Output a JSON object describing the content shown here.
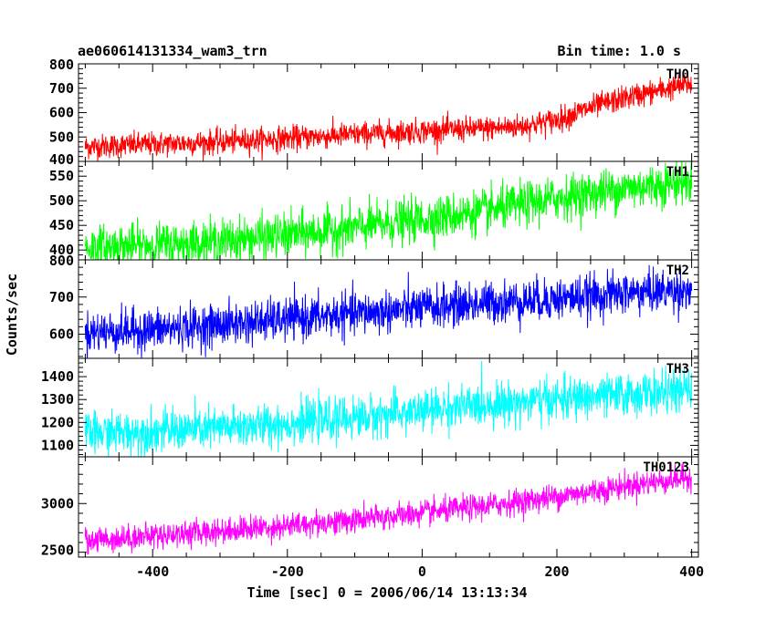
{
  "chart_data": {
    "type": "line",
    "title": "ae060614131334_wam3_trn",
    "subtitle": "Bin time: 1.0 s",
    "xlabel": "Time [sec] 0 = 2006/06/14 13:13:34",
    "ylabel": "Counts/sec",
    "xlim": [
      -510,
      410
    ],
    "x_ticks": [
      -400,
      -200,
      0,
      200,
      400
    ],
    "grid": false,
    "panels": [
      {
        "name": "TH0",
        "color": "#ff0000",
        "ylim": [
          400,
          800
        ],
        "y_ticks": [
          400,
          500,
          600,
          700,
          800
        ],
        "trend": {
          "x": [
            -500,
            -400,
            -300,
            -200,
            -100,
            0,
            100,
            150,
            200,
            250,
            300,
            350,
            400
          ],
          "y": [
            460,
            470,
            480,
            495,
            510,
            525,
            535,
            545,
            570,
            620,
            660,
            690,
            720
          ]
        },
        "noise_sd": 25
      },
      {
        "name": "TH1",
        "color": "#00ff00",
        "ylim": [
          380,
          580
        ],
        "y_ticks": [
          400,
          450,
          500,
          550
        ],
        "trend": {
          "x": [
            -500,
            -400,
            -300,
            -200,
            -100,
            0,
            100,
            200,
            300,
            400
          ],
          "y": [
            405,
            410,
            418,
            430,
            445,
            462,
            480,
            505,
            525,
            540
          ]
        },
        "noise_sd": 22
      },
      {
        "name": "TH2",
        "color": "#0000ff",
        "ylim": [
          535,
          800
        ],
        "y_ticks": [
          600,
          700,
          800
        ],
        "trend": {
          "x": [
            -500,
            -400,
            -300,
            -200,
            -100,
            0,
            100,
            200,
            300,
            400
          ],
          "y": [
            605,
            612,
            625,
            640,
            655,
            670,
            685,
            695,
            710,
            720
          ]
        },
        "noise_sd": 28
      },
      {
        "name": "TH3",
        "color": "#00ffff",
        "ylim": [
          1050,
          1480
        ],
        "y_ticks": [
          1100,
          1200,
          1300,
          1400
        ],
        "trend": {
          "x": [
            -500,
            -400,
            -300,
            -200,
            -100,
            0,
            100,
            200,
            300,
            400
          ],
          "y": [
            1150,
            1160,
            1175,
            1195,
            1220,
            1250,
            1280,
            1300,
            1320,
            1340
          ]
        },
        "noise_sd": 45
      },
      {
        "name": "TH0123",
        "color": "#ff00ff",
        "ylim": [
          2450,
          3480
        ],
        "y_ticks": [
          2500,
          3000
        ],
        "trend": {
          "x": [
            -500,
            -400,
            -300,
            -200,
            -100,
            0,
            100,
            200,
            300,
            400
          ],
          "y": [
            2620,
            2670,
            2720,
            2770,
            2830,
            2900,
            2980,
            3070,
            3180,
            3270
          ]
        },
        "noise_sd": 65
      }
    ]
  }
}
